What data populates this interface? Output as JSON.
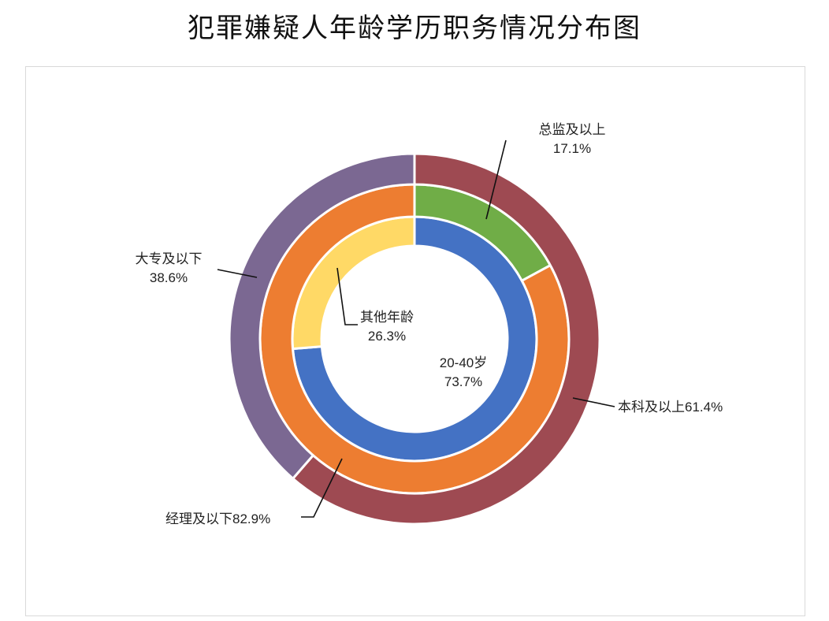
{
  "title": "犯罪嫌疑人年龄学历职务情况分布图",
  "chart_data": {
    "type": "pie",
    "variant": "multi-ring donut",
    "rings": [
      {
        "ring": "inner",
        "slices": [
          {
            "name": "20-40岁",
            "value": 73.7,
            "label_text": "20-40岁",
            "pct_text": "73.7%",
            "color": "#4472C4"
          },
          {
            "name": "其他年龄",
            "value": 26.3,
            "label_text": "其他年龄",
            "pct_text": "26.3%",
            "color": "#FFD966"
          }
        ]
      },
      {
        "ring": "middle",
        "slices": [
          {
            "name": "总监及以上",
            "value": 17.1,
            "label_text": "总监及以上",
            "pct_text": "17.1%",
            "color": "#70AD47"
          },
          {
            "name": "经理及以下",
            "value": 82.9,
            "label_text": "经理及以下82.9%",
            "pct_text": "",
            "color": "#ED7D31"
          }
        ]
      },
      {
        "ring": "outer",
        "slices": [
          {
            "name": "本科及以上",
            "value": 61.4,
            "label_text": "本科及以上61.4%",
            "pct_text": "",
            "color": "#9E4A52"
          },
          {
            "name": "大专及以下",
            "value": 38.6,
            "label_text": "大专及以下",
            "pct_text": "38.6%",
            "color": "#7B6892"
          }
        ]
      }
    ]
  }
}
